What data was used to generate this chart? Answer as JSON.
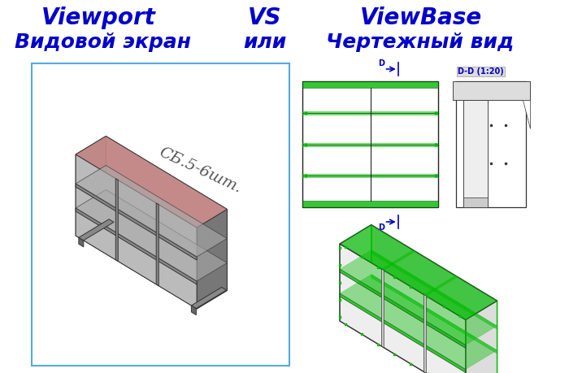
{
  "title_line1_left": "Viewport",
  "title_line1_mid": "VS",
  "title_line1_right": "ViewBase",
  "title_line2_left": "Видовой экран",
  "title_line2_mid": "или",
  "title_line2_right": "Чертежный вид",
  "title_color": "#0000CC",
  "title_fontsize": 20,
  "subtitle_fontsize": 18,
  "bg_color": "#ffffff",
  "box_color": "#55AADD",
  "annotation_text": "СБ.5-6шт.",
  "annotation_color": "#555555",
  "annotation_fontsize": 14,
  "section_label": "D-D (1:20)",
  "section_label_color": "#0000CC",
  "arrow_color": "#0000CC",
  "green_color": "#00BB00",
  "dark_color": "#333333",
  "shelf_gray": "#888888",
  "shelf_dark": "#555555",
  "shelf_light": "#aaaaaa",
  "shelf_pink": "#CC8888"
}
